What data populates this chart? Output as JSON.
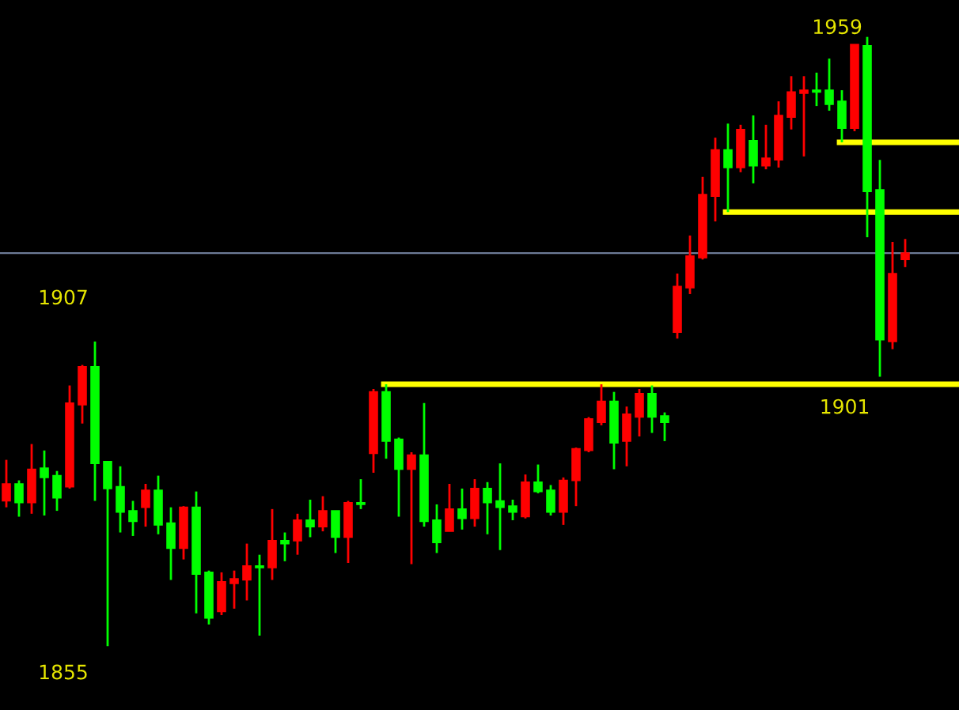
{
  "chart_data": {
    "type": "candlestick",
    "categories": [
      null,
      null,
      null,
      null,
      null,
      null,
      null,
      null,
      null,
      null,
      null,
      null,
      null,
      null,
      null,
      null,
      null,
      null,
      null,
      null,
      null,
      null,
      null,
      null,
      null,
      null,
      null,
      null,
      null,
      null,
      null,
      null,
      null,
      null,
      null,
      null,
      null,
      null,
      null,
      null,
      null,
      null,
      null,
      null,
      null,
      null,
      null,
      null,
      null,
      null,
      null,
      null,
      null,
      null,
      null,
      null,
      null,
      null,
      null,
      null,
      null,
      null,
      null,
      null,
      null,
      null,
      null,
      null,
      null,
      null,
      null,
      null
    ],
    "ohlc": [
      [
        1879.8,
        1886.8,
        1878.7,
        1882.7
      ],
      [
        1882.7,
        1883.3,
        1877.1,
        1879.5
      ],
      [
        1879.5,
        1889.5,
        1877.6,
        1885.2
      ],
      [
        1885.4,
        1888.4,
        1877.3,
        1883.8
      ],
      [
        1884.1,
        1884.9,
        1878.1,
        1880.3
      ],
      [
        1882.2,
        1899.5,
        1881.9,
        1896.5
      ],
      [
        1896.2,
        1903.0,
        1893.0,
        1902.7
      ],
      [
        1902.7,
        1907,
        1879.8,
        1886.2
      ],
      [
        1886.5,
        1886.5,
        1855,
        1881.9
      ],
      [
        1882.2,
        1885.7,
        1874.4,
        1877.9
      ],
      [
        1878.1,
        1879.8,
        1873.8,
        1876.3
      ],
      [
        1878.7,
        1882.7,
        1875.4,
        1881.6
      ],
      [
        1881.6,
        1884.1,
        1874.1,
        1875.7
      ],
      [
        1876.0,
        1878.7,
        1866.3,
        1871.7
      ],
      [
        1871.7,
        1878.9,
        1869.8,
        1878.7
      ],
      [
        1878.7,
        1881.4,
        1860.6,
        1867.3
      ],
      [
        1867.6,
        1867.9,
        1858.7,
        1859.8
      ],
      [
        1860.9,
        1867.6,
        1860.3,
        1866.0
      ],
      [
        1865.7,
        1867.9,
        1861.4,
        1866.5
      ],
      [
        1866.3,
        1872.5,
        1862.8,
        1868.7
      ],
      [
        1868.7,
        1870.6,
        1856.8,
        1868.4
      ],
      [
        1868.4,
        1878.4,
        1866.3,
        1873.0
      ],
      [
        1873.0,
        1874.4,
        1869.5,
        1872.5
      ],
      [
        1873.0,
        1877.6,
        1870.6,
        1876.5
      ],
      [
        1876.5,
        1880.0,
        1873.6,
        1875.4
      ],
      [
        1875.4,
        1880.6,
        1874.6,
        1878.1
      ],
      [
        1878.1,
        1878.1,
        1870.9,
        1873.6
      ],
      [
        1873.6,
        1879.8,
        1869.2,
        1879.5
      ],
      [
        1879.5,
        1883.5,
        1878.4,
        1879.2
      ],
      [
        1887.9,
        1898.9,
        1884.6,
        1898.4
      ],
      [
        1898.4,
        1899.7,
        1887.0,
        1890.0
      ],
      [
        1890.3,
        1890.6,
        1877.1,
        1885.2
      ],
      [
        1885.2,
        1888.1,
        1869.0,
        1887.6
      ],
      [
        1887.6,
        1896.5,
        1875.4,
        1876.3
      ],
      [
        1876.5,
        1879.2,
        1870.9,
        1872.7
      ],
      [
        1874.6,
        1882.7,
        1874.6,
        1878.4
      ],
      [
        1878.4,
        1881.9,
        1874.9,
        1876.8
      ],
      [
        1876.8,
        1883.5,
        1875.4,
        1881.9
      ],
      [
        1881.9,
        1883.0,
        1874.1,
        1879.5
      ],
      [
        1879.8,
        1886.2,
        1871.4,
        1878.7
      ],
      [
        1878.9,
        1880.0,
        1876.5,
        1877.9
      ],
      [
        1877.1,
        1884.3,
        1876.8,
        1883.0
      ],
      [
        1883.0,
        1886.0,
        1881.1,
        1881.4
      ],
      [
        1881.6,
        1882.5,
        1877.3,
        1877.9
      ],
      [
        1877.9,
        1883.8,
        1875.7,
        1883.3
      ],
      [
        1883.3,
        1888.9,
        1878.9,
        1888.7
      ],
      [
        1888.4,
        1894.1,
        1888.1,
        1893.8
      ],
      [
        1893.2,
        1899.7,
        1892.7,
        1896.8
      ],
      [
        1896.8,
        1898.4,
        1885.2,
        1889.7
      ],
      [
        1890.0,
        1895.9,
        1885.7,
        1894.6
      ],
      [
        1894.1,
        1898.9,
        1890.8,
        1898.1
      ],
      [
        1898.1,
        1899.5,
        1891.4,
        1894.1
      ],
      [
        1894.3,
        1894.9,
        1890.0,
        1893.2
      ],
      [
        1908.6,
        1918.6,
        1907.5,
        1916.4
      ],
      [
        1916.2,
        1925.1,
        1915.1,
        1921.6
      ],
      [
        1921.3,
        1935.1,
        1921.0,
        1932.1
      ],
      [
        1931.8,
        1941.8,
        1927.5,
        1939.7
      ],
      [
        1939.7,
        1944.2,
        1929.1,
        1936.7
      ],
      [
        1936.7,
        1944.0,
        1935.9,
        1943.2
      ],
      [
        1941.3,
        1945.6,
        1934.0,
        1937.0
      ],
      [
        1937.0,
        1944.0,
        1936.4,
        1938.3
      ],
      [
        1938.0,
        1948.0,
        1936.7,
        1945.6
      ],
      [
        1945.3,
        1952.3,
        1943.2,
        1949.6
      ],
      [
        1949.4,
        1952.3,
        1938.6,
        1949.9
      ],
      [
        1949.9,
        1952.9,
        1947.2,
        1949.6
      ],
      [
        1949.9,
        1955.3,
        1946.4,
        1947.5
      ],
      [
        1948.0,
        1949.9,
        1941.0,
        1943.4
      ],
      [
        1943.4,
        1957.7,
        1942.9,
        1957.7
      ],
      [
        1957.5,
        1959,
        1924.8,
        1932.6
      ],
      [
        1932.9,
        1938.0,
        1901,
        1907.3
      ],
      [
        1907.0,
        1924.0,
        1905.7,
        1918.6
      ],
      [
        1921.0,
        1924.5,
        1919.7,
        1922.1
      ]
    ],
    "colors": [
      "#ff0000",
      "#00ff00",
      "#ff0000",
      "#00ff00",
      "#00ff00",
      "#ff0000",
      "#ff0000",
      "#00ff00",
      "#00ff00",
      "#00ff00",
      "#00ff00",
      "#ff0000",
      "#00ff00",
      "#00ff00",
      "#ff0000",
      "#00ff00",
      "#00ff00",
      "#ff0000",
      "#ff0000",
      "#ff0000",
      "#00ff00",
      "#ff0000",
      "#00ff00",
      "#ff0000",
      "#00ff00",
      "#ff0000",
      "#00ff00",
      "#ff0000",
      "#00ff00",
      "#ff0000",
      "#00ff00",
      "#00ff00",
      "#ff0000",
      "#00ff00",
      "#00ff00",
      "#ff0000",
      "#00ff00",
      "#ff0000",
      "#00ff00",
      "#00ff00",
      "#00ff00",
      "#ff0000",
      "#00ff00",
      "#00ff00",
      "#ff0000",
      "#ff0000",
      "#ff0000",
      "#ff0000",
      "#00ff00",
      "#ff0000",
      "#ff0000",
      "#00ff00",
      "#00ff00",
      "#ff0000",
      "#ff0000",
      "#ff0000",
      "#ff0000",
      "#00ff00",
      "#ff0000",
      "#00ff00",
      "#ff0000",
      "#ff0000",
      "#ff0000",
      "#ff0000",
      "#00ff00",
      "#00ff00",
      "#00ff00",
      "#ff0000",
      "#00ff00",
      "#00ff00",
      "#ff0000",
      "#ff0000"
    ],
    "ylim": [
      1844.1,
      1965.3
    ],
    "tick_labels": false,
    "ref_lines": [
      {
        "axis": "y",
        "value": 1941.0,
        "color": "#ffff00"
      },
      {
        "axis": "y",
        "value": 1929.1,
        "color": "#ffff00"
      },
      {
        "axis": "y",
        "value": 1899.7,
        "color": "#ffff00"
      },
      {
        "axis": "y",
        "value": 1922.1,
        "color": "#6c7a96"
      }
    ],
    "annotations": [
      "1959",
      "1907",
      "1855",
      {
        "text": "1901",
        "y": 1901
      }
    ]
  }
}
